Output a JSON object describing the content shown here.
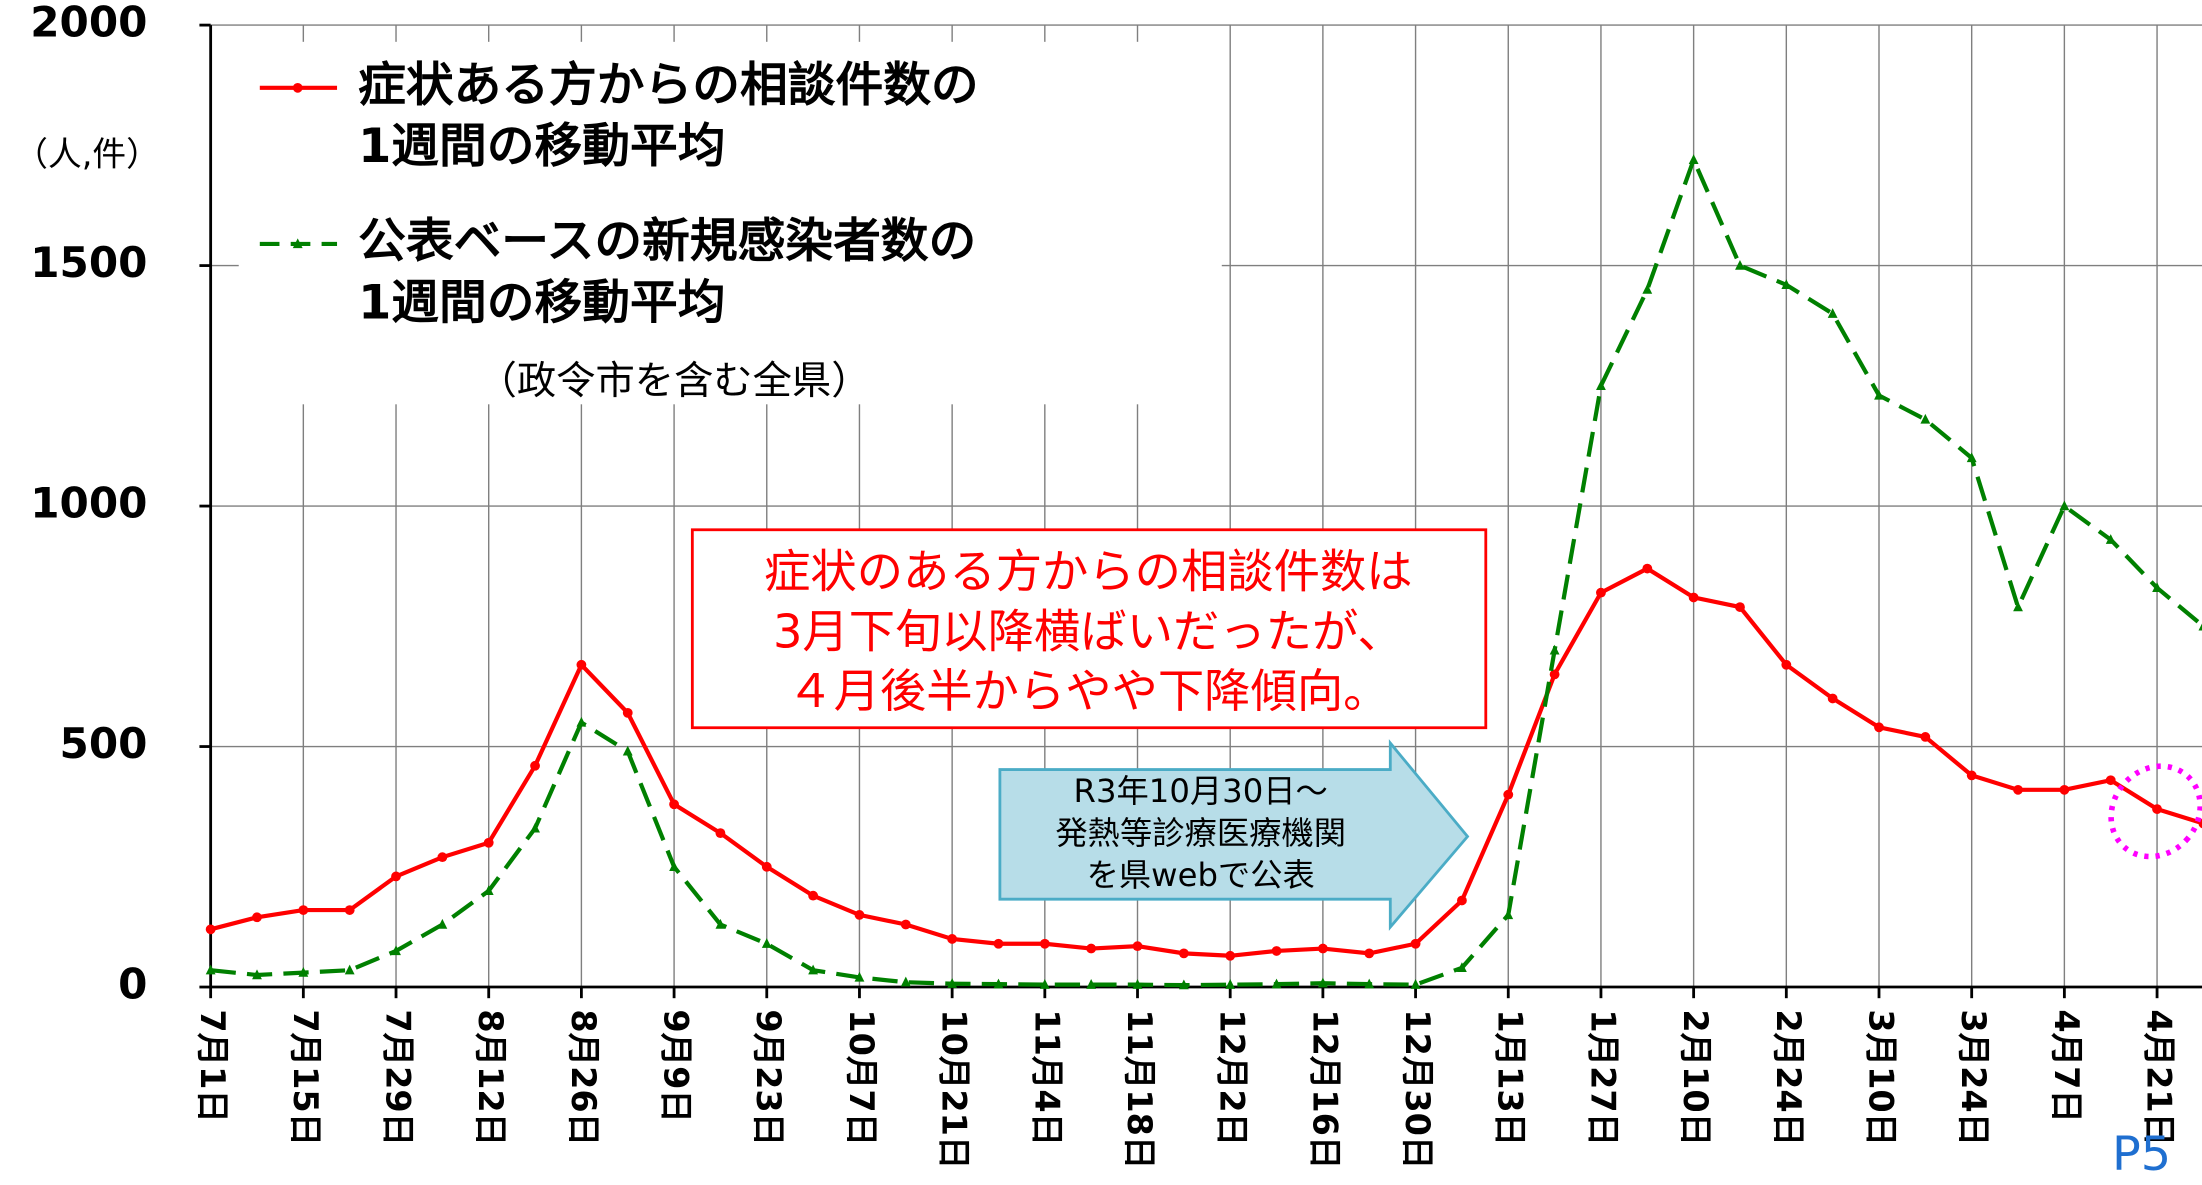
{
  "chart_data": {
    "type": "line",
    "y_unit_label": "（人,件）",
    "legend_note": "（政令市を含む全県）",
    "annotation": "症状のある方からの相談件数は\n3月下旬以降横ばいだったが、\n４月後半からやや下降傾向。",
    "arrow_note": "R3年10月30日～\n発熱等診療医療機関\nを県webで公表",
    "page_number": "P5",
    "categories": [
      "7月1日",
      null,
      "7月15日",
      null,
      "7月29日",
      null,
      "8月12日",
      null,
      "8月26日",
      null,
      "9月9日",
      null,
      "9月23日",
      null,
      "10月7日",
      null,
      "10月21日",
      null,
      "11月4日",
      null,
      "11月18日",
      null,
      "12月2日",
      null,
      "12月16日",
      null,
      "12月30日",
      null,
      "1月13日",
      null,
      "1月27日",
      null,
      "2月10日",
      null,
      "2月24日",
      null,
      "3月10日",
      null,
      "3月24日",
      null,
      "4月7日",
      null,
      "4月21日",
      null
    ],
    "series": [
      {
        "name": "症状ある方からの相談件数の\n1週間の移動平均",
        "color": "#ff0000",
        "dash": false,
        "marker": "circle",
        "values": [
          120,
          145,
          160,
          160,
          230,
          270,
          300,
          460,
          670,
          570,
          380,
          320,
          250,
          190,
          150,
          130,
          100,
          90,
          90,
          80,
          85,
          70,
          65,
          75,
          80,
          70,
          90,
          180,
          400,
          650,
          820,
          870,
          810,
          790,
          670,
          600,
          540,
          520,
          440,
          410,
          410,
          430,
          370,
          340
        ]
      },
      {
        "name": "公表ベースの新規感染者数の\n1週間の移動平均",
        "color": "#008000",
        "dash": true,
        "marker": "triangle",
        "values": [
          35,
          25,
          30,
          35,
          75,
          130,
          200,
          330,
          550,
          490,
          250,
          130,
          90,
          35,
          20,
          10,
          7,
          6,
          5,
          5,
          5,
          4,
          5,
          6,
          8,
          6,
          5,
          40,
          150,
          700,
          1250,
          1450,
          1720,
          1500,
          1460,
          1400,
          1230,
          1180,
          1100,
          790,
          1000,
          930,
          830,
          750
        ]
      }
    ],
    "ylim": [
      0,
      2000
    ],
    "yticks": [
      0,
      500,
      1000,
      1500,
      2000
    ],
    "grid": true
  }
}
